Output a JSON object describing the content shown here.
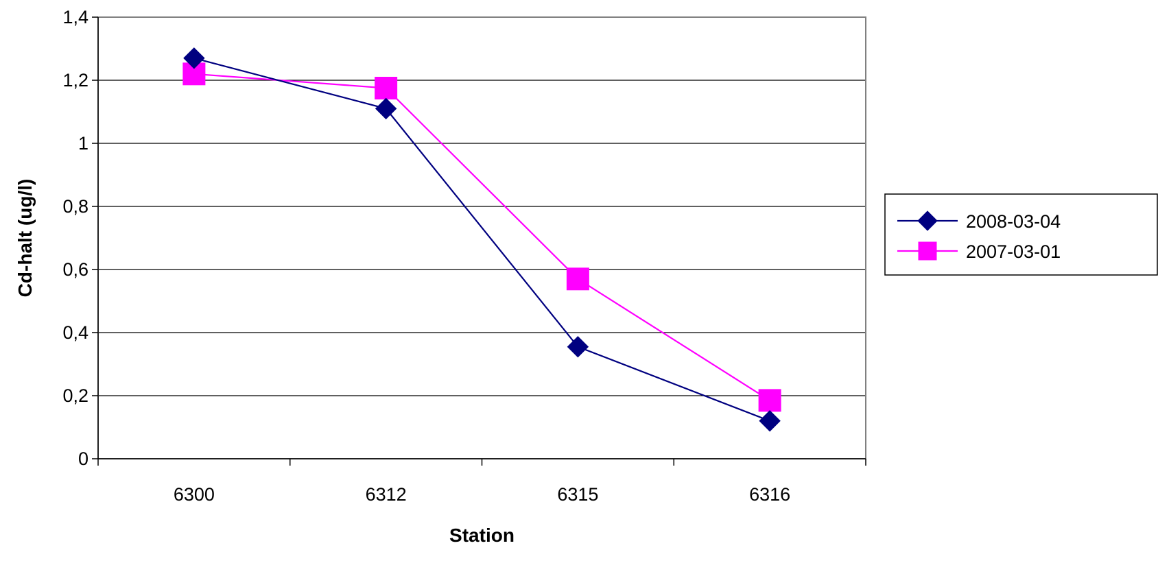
{
  "chart_data": {
    "type": "line",
    "title": "",
    "xlabel": "Station",
    "ylabel": "Cd-halt (ug/l)",
    "categories": [
      "6300",
      "6312",
      "6315",
      "6316"
    ],
    "ylim": [
      0,
      1.4
    ],
    "yticks": [
      0,
      0.2,
      0.4,
      0.6,
      0.8,
      1,
      1.2,
      1.4
    ],
    "ytick_labels": [
      "0",
      "0,2",
      "0,4",
      "0,6",
      "0,8",
      "1",
      "1,2",
      "1,4"
    ],
    "grid": true,
    "legend_position": "right",
    "series": [
      {
        "name": "2008-03-04",
        "values": [
          1.27,
          1.11,
          0.355,
          0.12
        ],
        "color": "#000080",
        "marker": "diamond"
      },
      {
        "name": "2007-03-01",
        "values": [
          1.22,
          1.175,
          0.57,
          0.185
        ],
        "color": "#FF00FF",
        "marker": "square"
      }
    ]
  }
}
